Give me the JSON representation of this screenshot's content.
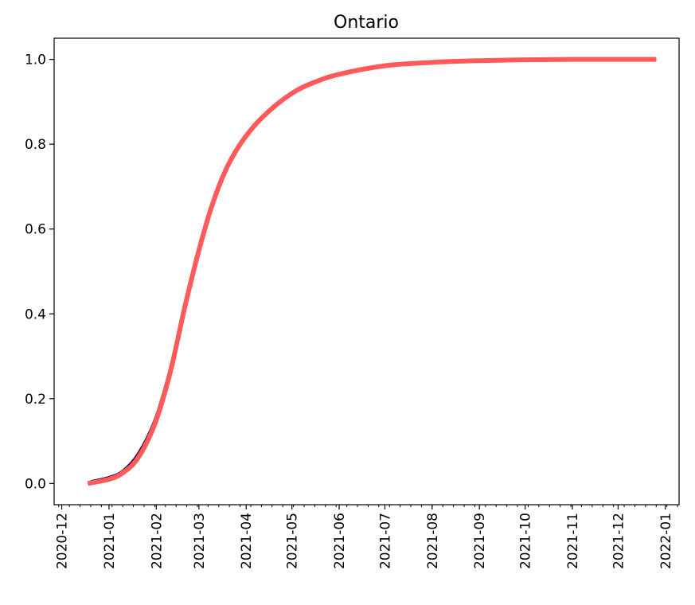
{
  "chart_data": {
    "type": "line",
    "title": "Ontario",
    "xlabel": "",
    "ylabel": "",
    "grid": false,
    "legend": "none",
    "xlim": [
      "2020-11-26",
      "2022-01-10"
    ],
    "ylim": [
      -0.05,
      1.05
    ],
    "x_ticks": [
      "2020-12",
      "2021-01",
      "2021-02",
      "2021-03",
      "2021-04",
      "2021-05",
      "2021-06",
      "2021-07",
      "2021-08",
      "2021-09",
      "2021-10",
      "2021-11",
      "2021-12",
      "2022-01"
    ],
    "y_ticks": [
      "0.0",
      "0.2",
      "0.4",
      "0.6",
      "0.8",
      "1.0"
    ],
    "series": [
      {
        "color": "#2a0f45",
        "x": [
          "2020-12-20",
          "2021-01-01",
          "2021-01-10",
          "2021-01-20",
          "2021-01-31",
          "2021-02-10",
          "2021-02-20",
          "2021-03-01",
          "2021-03-10",
          "2021-03-20",
          "2021-04-01",
          "2021-04-15",
          "2021-05-01",
          "2021-05-15",
          "2021-06-01",
          "2021-07-01",
          "2021-08-01",
          "2021-09-01",
          "2021-10-01",
          "2021-11-01",
          "2021-12-01",
          "2021-12-26"
        ],
        "y": [
          0.005,
          0.015,
          0.03,
          0.07,
          0.15,
          0.27,
          0.42,
          0.55,
          0.66,
          0.75,
          0.82,
          0.875,
          0.92,
          0.945,
          0.965,
          0.985,
          0.993,
          0.997,
          0.999,
          1.0,
          1.0,
          1.0
        ]
      },
      {
        "color": "#ff5a5a",
        "x": [
          "2020-12-18",
          "2021-01-01",
          "2021-01-10",
          "2021-01-20",
          "2021-01-31",
          "2021-02-10",
          "2021-02-20",
          "2021-03-01",
          "2021-03-10",
          "2021-03-20",
          "2021-04-01",
          "2021-04-15",
          "2021-05-01",
          "2021-05-15",
          "2021-06-01",
          "2021-07-01",
          "2021-08-01",
          "2021-09-01",
          "2021-10-01",
          "2021-11-01",
          "2021-12-01",
          "2021-12-26"
        ],
        "y": [
          0.0,
          0.01,
          0.025,
          0.06,
          0.14,
          0.26,
          0.42,
          0.55,
          0.66,
          0.75,
          0.82,
          0.875,
          0.92,
          0.945,
          0.965,
          0.985,
          0.993,
          0.997,
          0.999,
          1.0,
          1.0,
          1.0
        ]
      }
    ]
  }
}
